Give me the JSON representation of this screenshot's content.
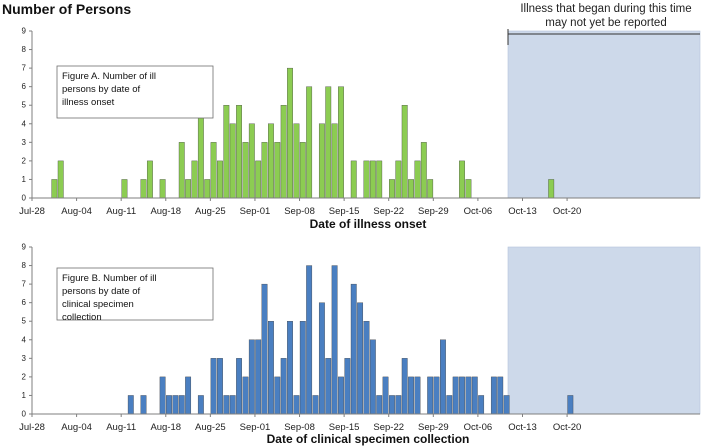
{
  "page": {
    "title": "Number of Persons",
    "shade_note": "Illness that began during this time may not yet be reported"
  },
  "colors": {
    "panel_a_bars": "#8ccc52",
    "panel_b_bars": "#4a7fc1",
    "shade": "#cdd9ea",
    "axis": "#7f7f7f"
  },
  "chart_data": [
    {
      "type": "bar",
      "title": "Figure A. Number of ill persons by date of illness onset",
      "xlabel": "Date of illness onset",
      "ylabel": "Number of Persons",
      "ylim": [
        0,
        9
      ],
      "yticks": [
        0,
        1,
        2,
        3,
        4,
        5,
        6,
        7,
        8,
        9
      ],
      "x_tick_labels": [
        "Jul-28",
        "Aug-04",
        "Aug-11",
        "Aug-18",
        "Aug-25",
        "Sep-01",
        "Sep-08",
        "Sep-15",
        "Sep-22",
        "Sep-29",
        "Oct-06",
        "Oct-13",
        "Oct-20"
      ],
      "x_start": "Jul-28",
      "shaded_from": "Sep-27",
      "grid": false,
      "values": [
        0,
        0,
        0,
        1,
        2,
        0,
        0,
        0,
        0,
        0,
        0,
        0,
        0,
        0,
        1,
        0,
        0,
        1,
        2,
        0,
        1,
        0,
        0,
        3,
        1,
        2,
        7,
        1,
        3,
        2,
        5,
        4,
        5,
        3,
        4,
        2,
        3,
        4,
        3,
        5,
        7,
        4,
        3,
        6,
        0,
        4,
        6,
        4,
        6,
        0,
        2,
        0,
        2,
        2,
        2,
        0,
        1,
        2,
        5,
        1,
        2,
        3,
        1,
        0,
        0,
        0,
        0,
        2,
        1,
        0,
        0,
        0,
        0,
        0,
        0,
        0,
        0,
        0,
        0,
        0,
        0,
        1,
        0,
        0,
        0,
        0,
        0,
        0,
        0,
        0,
        0,
        0,
        0,
        0
      ]
    },
    {
      "type": "bar",
      "title": "Figure B. Number of ill persons by date of clinical specimen collection",
      "xlabel": "Date of clinical specimen collection",
      "ylabel": "Number of Persons",
      "ylim": [
        0,
        9
      ],
      "yticks": [
        0,
        1,
        2,
        3,
        4,
        5,
        6,
        7,
        8,
        9
      ],
      "x_tick_labels": [
        "Jul-28",
        "Aug-04",
        "Aug-11",
        "Aug-18",
        "Aug-25",
        "Sep-01",
        "Sep-08",
        "Sep-15",
        "Sep-22",
        "Sep-29",
        "Oct-06",
        "Oct-13",
        "Oct-20"
      ],
      "x_start": "Jul-28",
      "shaded_from": "Sep-27",
      "grid": false,
      "values": [
        0,
        0,
        0,
        0,
        0,
        0,
        0,
        0,
        0,
        0,
        0,
        0,
        0,
        0,
        0,
        1,
        0,
        1,
        0,
        0,
        2,
        1,
        1,
        1,
        2,
        0,
        1,
        0,
        3,
        3,
        1,
        1,
        3,
        2,
        4,
        4,
        7,
        5,
        2,
        3,
        5,
        1,
        5,
        8,
        1,
        6,
        3,
        8,
        2,
        3,
        7,
        6,
        5,
        4,
        1,
        2,
        1,
        1,
        3,
        2,
        2,
        0,
        2,
        2,
        4,
        1,
        2,
        2,
        2,
        2,
        1,
        0,
        2,
        2,
        1,
        0,
        0,
        0,
        0,
        0,
        0,
        0,
        0,
        0,
        1,
        0,
        0,
        0,
        0,
        0,
        0,
        0,
        0,
        0
      ]
    }
  ]
}
